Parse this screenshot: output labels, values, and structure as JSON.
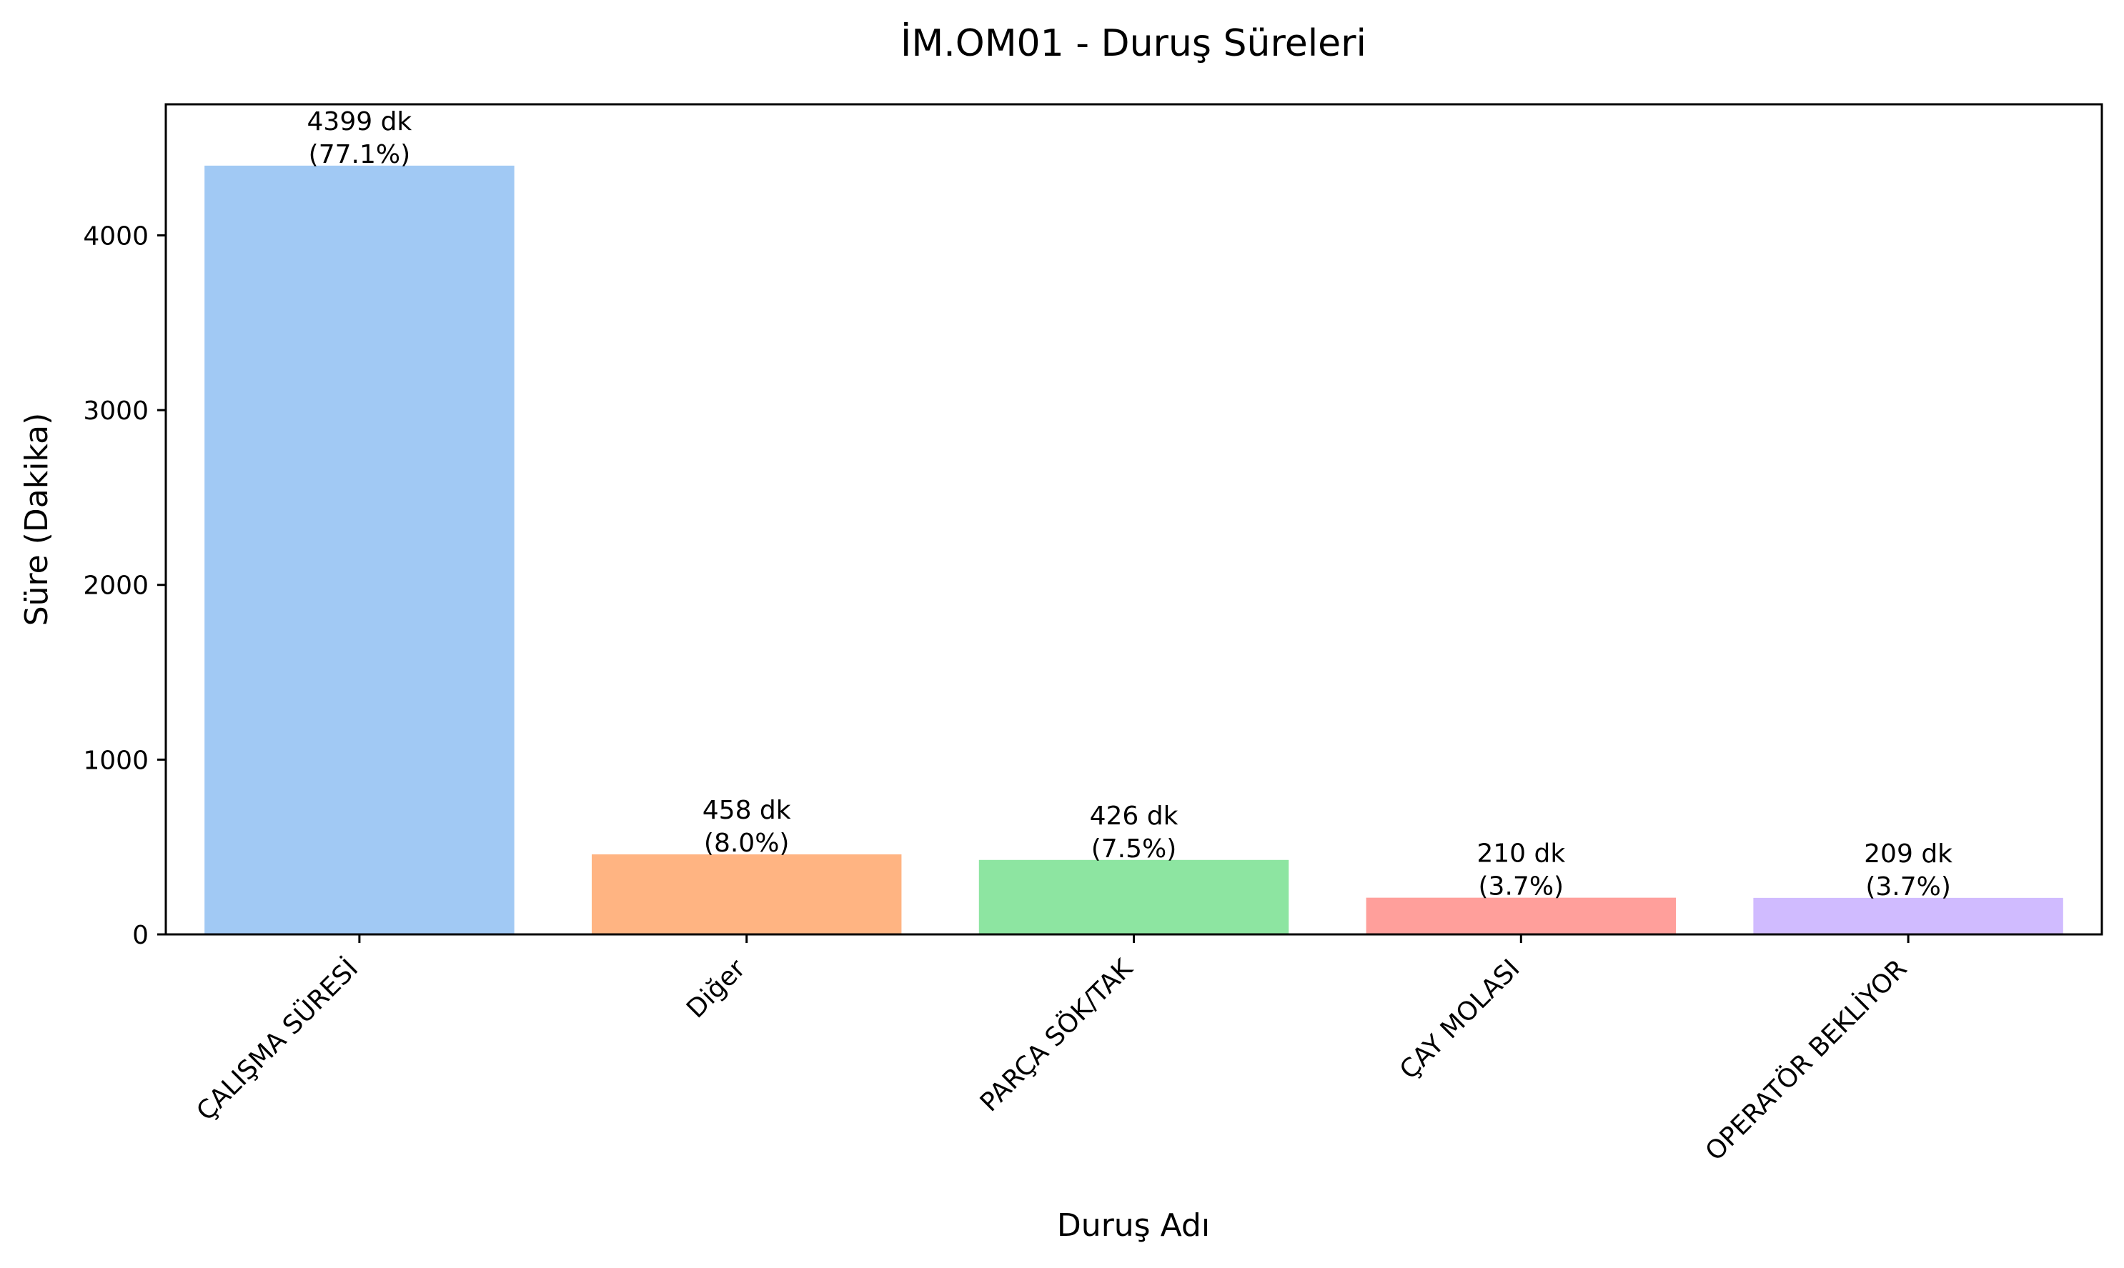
{
  "chart_data": {
    "type": "bar",
    "title": "İM.OM01 - Duruş Süreleri",
    "xlabel": "Duruş Adı",
    "ylabel": "Süre (Dakika)",
    "ylim": [
      0,
      4750
    ],
    "yticks": [
      0,
      1000,
      2000,
      3000,
      4000
    ],
    "grid": false,
    "categories": [
      "ÇALIŞMA SÜRESİ",
      "Diğer",
      "PARÇA SÖK/TAK",
      "ÇAY MOLASI",
      "OPERATÖR BEKLİYOR"
    ],
    "values": [
      4399,
      458,
      426,
      210,
      209
    ],
    "value_labels": [
      "4399 dk",
      "458 dk",
      "426 dk",
      "210 dk",
      "209 dk"
    ],
    "percent_labels": [
      "(77.1%)",
      "(8.0%)",
      "(7.5%)",
      "(3.7%)",
      "(3.7%)"
    ],
    "colors": [
      "#a1c9f4",
      "#ffb482",
      "#8de5a1",
      "#ff9f9b",
      "#d0bbff"
    ]
  }
}
